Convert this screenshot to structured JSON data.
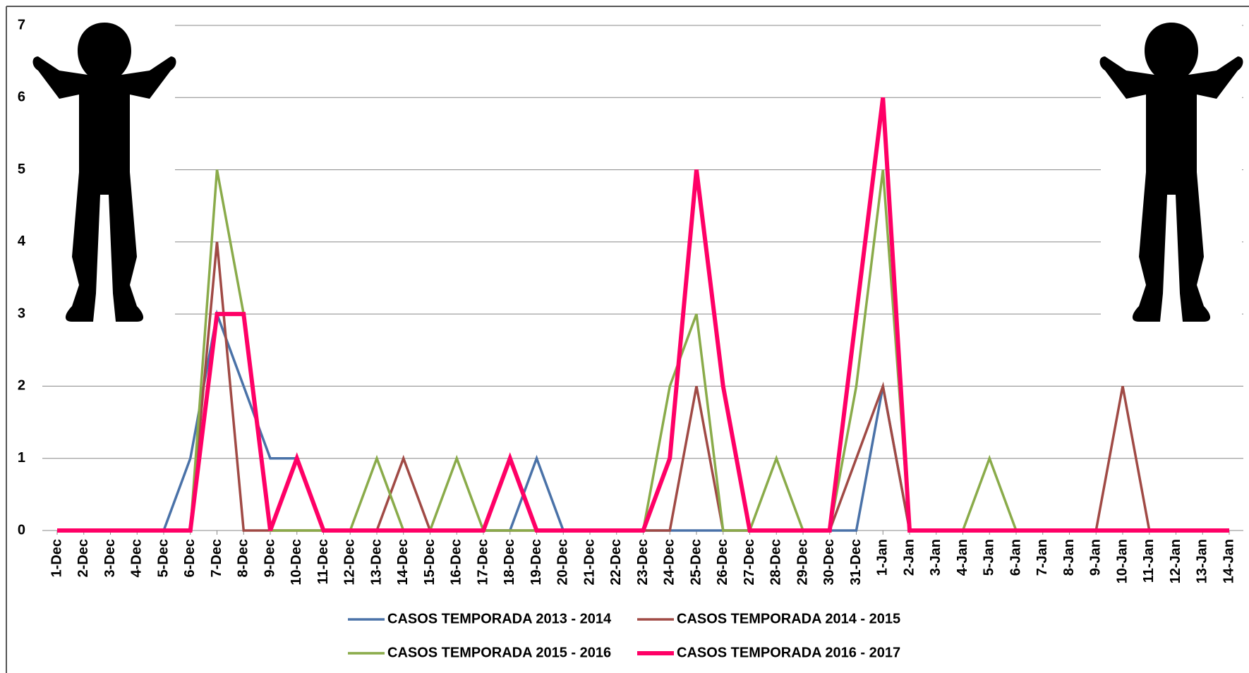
{
  "chart_data": {
    "type": "line",
    "categories": [
      "1-Dec",
      "2-Dec",
      "3-Dec",
      "4-Dec",
      "5-Dec",
      "6-Dec",
      "7-Dec",
      "8-Dec",
      "9-Dec",
      "10-Dec",
      "11-Dec",
      "12-Dec",
      "13-Dec",
      "14-Dec",
      "15-Dec",
      "16-Dec",
      "17-Dec",
      "18-Dec",
      "19-Dec",
      "20-Dec",
      "21-Dec",
      "22-Dec",
      "23-Dec",
      "24-Dec",
      "25-Dec",
      "26-Dec",
      "27-Dec",
      "28-Dec",
      "29-Dec",
      "30-Dec",
      "31-Dec",
      "1-Jan",
      "2-Jan",
      "3-Jan",
      "4-Jan",
      "5-Jan",
      "6-Jan",
      "7-Jan",
      "8-Jan",
      "9-Jan",
      "10-Jan",
      "11-Jan",
      "12-Jan",
      "13-Jan",
      "14-Jan"
    ],
    "series": [
      {
        "name": "CASOS TEMPORADA 2013 - 2014",
        "color": "#4a72a8",
        "values": [
          0,
          0,
          0,
          0,
          0,
          1,
          3,
          2,
          1,
          1,
          0,
          0,
          0,
          0,
          0,
          0,
          0,
          0,
          1,
          0,
          0,
          0,
          0,
          0,
          0,
          0,
          0,
          0,
          0,
          0,
          0,
          2,
          0,
          0,
          0,
          0,
          0,
          0,
          0,
          0,
          0,
          0,
          0,
          0,
          0
        ]
      },
      {
        "name": "CASOS TEMPORADA 2014 - 2015",
        "color": "#a04a45",
        "values": [
          0,
          0,
          0,
          0,
          0,
          0,
          4,
          0,
          0,
          0,
          0,
          0,
          0,
          1,
          0,
          0,
          0,
          0,
          0,
          0,
          0,
          0,
          0,
          0,
          2,
          0,
          0,
          0,
          0,
          0,
          1,
          2,
          0,
          0,
          0,
          0,
          0,
          0,
          0,
          0,
          2,
          0,
          0,
          0,
          0
        ]
      },
      {
        "name": "CASOS TEMPORADA 2015 - 2016",
        "color": "#8aab4a",
        "values": [
          0,
          0,
          0,
          0,
          0,
          0,
          5,
          3,
          0,
          0,
          0,
          0,
          1,
          0,
          0,
          1,
          0,
          0,
          0,
          0,
          0,
          0,
          0,
          2,
          3,
          0,
          0,
          1,
          0,
          0,
          2,
          5,
          0,
          0,
          0,
          1,
          0,
          0,
          0,
          0,
          0,
          0,
          0,
          0,
          0
        ]
      },
      {
        "name": "CASOS TEMPORADA 2016 - 2017",
        "color": "#ff0066",
        "values": [
          0,
          0,
          0,
          0,
          0,
          0,
          3,
          3,
          0,
          1,
          0,
          0,
          0,
          0,
          0,
          0,
          0,
          1,
          0,
          0,
          0,
          0,
          0,
          1,
          5,
          2,
          0,
          0,
          0,
          0,
          3,
          6,
          0,
          0,
          0,
          0,
          0,
          0,
          0,
          0,
          0,
          0,
          0,
          0,
          0
        ]
      }
    ],
    "ylim": [
      0,
      7
    ],
    "yticks": [
      0,
      1,
      2,
      3,
      4,
      5,
      6,
      7
    ],
    "grid": true
  }
}
